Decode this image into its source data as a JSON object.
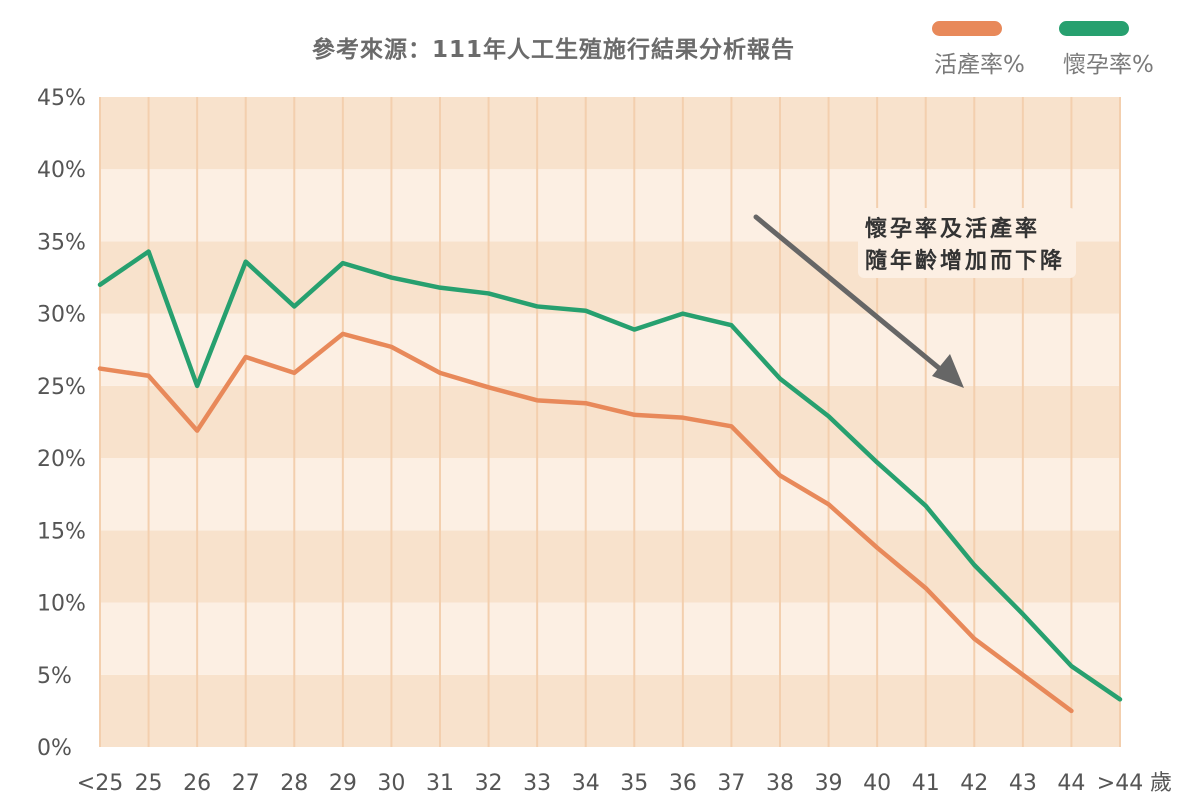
{
  "chart_data": {
    "type": "line",
    "title": "參考來源：111年人工生殖施行結果分析報告",
    "x_unit": "歲",
    "categories": [
      "<25",
      "25",
      "26",
      "27",
      "28",
      "29",
      "30",
      "31",
      "32",
      "33",
      "34",
      "35",
      "36",
      "37",
      "38",
      "39",
      "40",
      "41",
      "42",
      "43",
      "44",
      ">44"
    ],
    "y_tick_labels": [
      "0%",
      "5%",
      "10%",
      "15%",
      "20%",
      "25%",
      "30%",
      "35%",
      "40%",
      "45%"
    ],
    "ylim": [
      0,
      45
    ],
    "series": [
      {
        "name": "活產率%",
        "color": "#e8895a",
        "values": [
          26.2,
          25.7,
          21.9,
          27.0,
          25.9,
          28.6,
          27.7,
          25.9,
          24.9,
          24.0,
          23.8,
          23.0,
          22.8,
          22.2,
          18.8,
          16.8,
          13.8,
          11.0,
          7.5,
          5.0,
          2.5,
          null
        ]
      },
      {
        "name": "懷孕率%",
        "color": "#27a06f",
        "values": [
          32.0,
          34.3,
          25.0,
          33.6,
          30.5,
          33.5,
          32.5,
          31.8,
          31.4,
          30.5,
          30.2,
          28.9,
          30.0,
          29.2,
          25.5,
          22.9,
          19.7,
          16.7,
          12.6,
          9.2,
          5.6,
          3.3
        ]
      }
    ],
    "legend_position": "top-right",
    "annotation": {
      "lines": [
        "懷孕率及活產率",
        "隨年齡增加而下降"
      ]
    },
    "colors": {
      "band_dark": "#f8e2cc",
      "band_light": "#fcefe3",
      "grid_vertical": "#f3cfae",
      "arrow": "#666666"
    }
  }
}
